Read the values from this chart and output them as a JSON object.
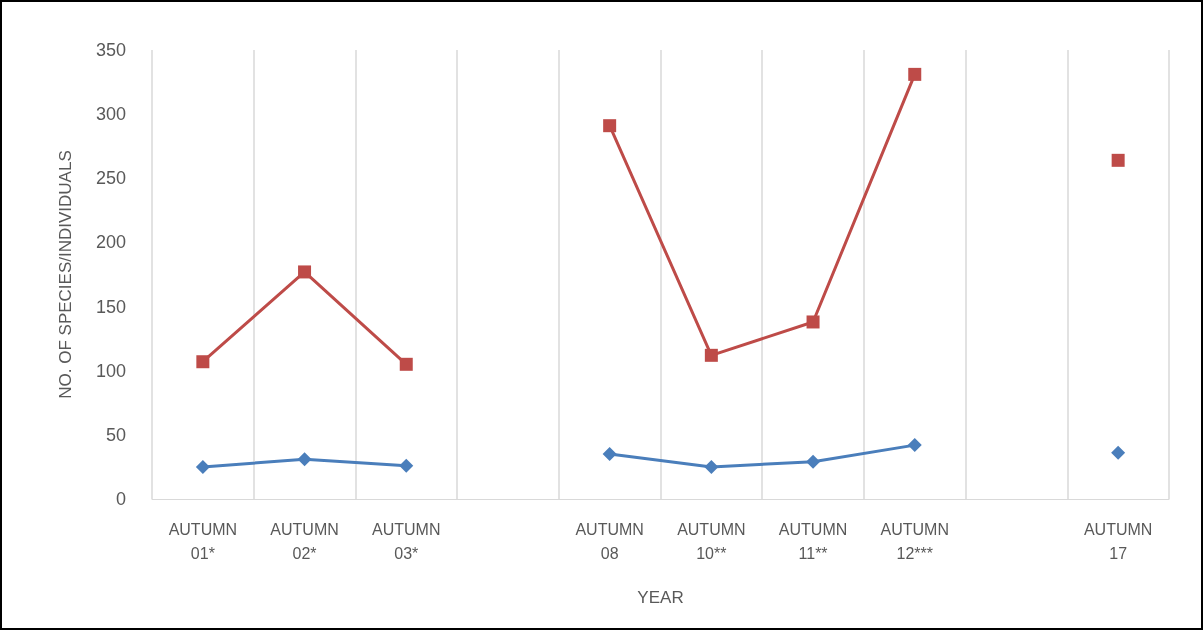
{
  "chart_data": {
    "type": "line",
    "xlabel": "YEAR",
    "ylabel": "NO. OF SPECIES/INDIVIDUALS",
    "categories": [
      "AUTUMN 01*",
      "AUTUMN 02*",
      "AUTUMN 03*",
      null,
      "AUTUMN 08",
      "AUTUMN 10**",
      "AUTUMN 11**",
      "AUTUMN 12***",
      null,
      "AUTUMN 17"
    ],
    "series": [
      {
        "color": "#4a7ebb",
        "marker": "diamond",
        "values": [
          25,
          31,
          26,
          null,
          35,
          25,
          29,
          42,
          null,
          36
        ]
      },
      {
        "color": "#be4b48",
        "marker": "square",
        "values": [
          107,
          177,
          105,
          null,
          291,
          112,
          138,
          331,
          null,
          264
        ]
      }
    ],
    "ylim": [
      0,
      350
    ],
    "yticks": [
      0,
      50,
      100,
      150,
      200,
      250,
      300,
      350
    ],
    "grid": "x"
  }
}
